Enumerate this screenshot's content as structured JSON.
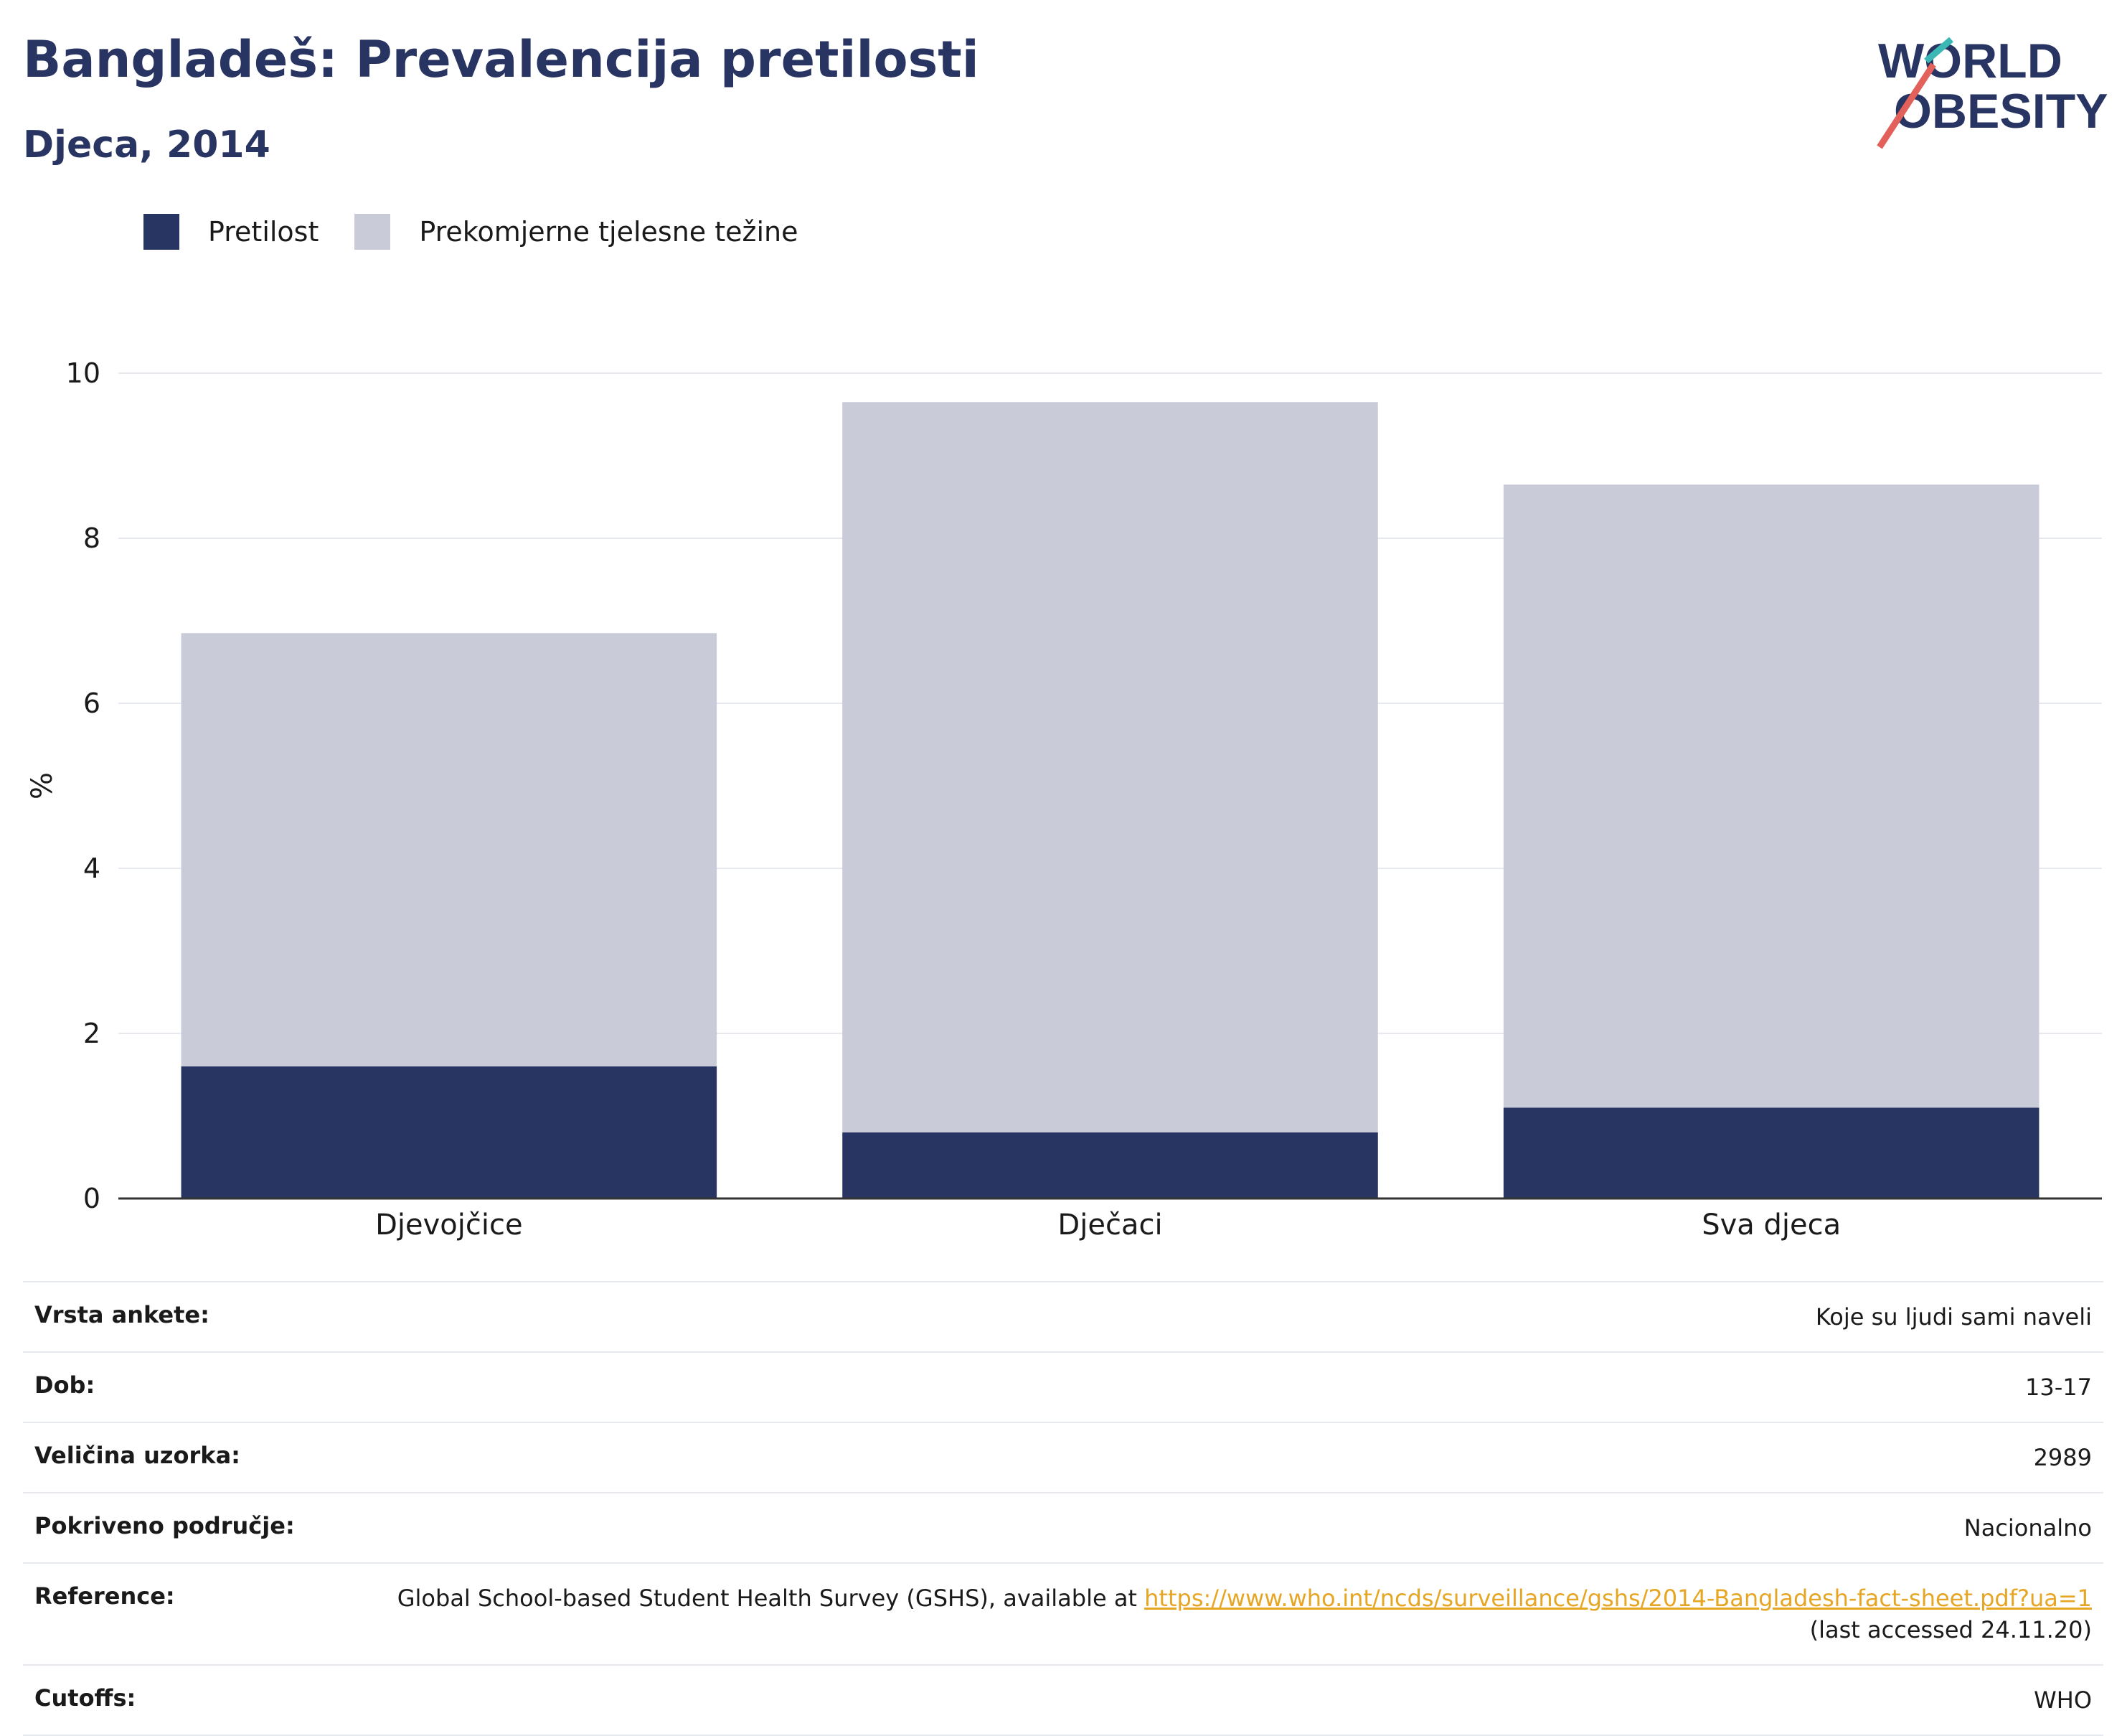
{
  "header": {
    "title": "Bangladeš: Prevalencija pretilosti",
    "subtitle": "Djeca, 2014"
  },
  "logo": {
    "line1": "WORLD",
    "line2": "OBESITY"
  },
  "colors": {
    "obesity": "#283462",
    "overweight": "#c9ccd8",
    "accent_teal": "#3bb8b5",
    "accent_red": "#e2615a",
    "link": "#e6a623"
  },
  "chart_data": {
    "type": "bar",
    "stacked": true,
    "categories": [
      "Djevojčice",
      "Dječaci",
      "Sva djeca"
    ],
    "series": [
      {
        "name": "Pretilost",
        "values": [
          1.6,
          0.8,
          1.1
        ],
        "color": "#283462"
      },
      {
        "name": "Prekomjerne tjelesne težine",
        "values": [
          5.25,
          8.85,
          7.55
        ],
        "color": "#c9ccd8"
      }
    ],
    "ylabel": "%",
    "ylim": [
      0,
      10
    ],
    "yticks": [
      0,
      2,
      4,
      6,
      8,
      10
    ],
    "grid": true,
    "legend": "top-left"
  },
  "meta": [
    {
      "key": "Vrsta ankete:",
      "value": "Koje su ljudi sami naveli"
    },
    {
      "key": "Dob:",
      "value": "13-17"
    },
    {
      "key": "Veličina uzorka:",
      "value": "2989"
    },
    {
      "key": "Pokriveno područje:",
      "value": "Nacionalno"
    },
    {
      "key": "Reference:",
      "value_prefix": "Global School-based Student Health Survey (GSHS), available at ",
      "link": "https://www.who.int/ncds/surveillance/gshs/2014-Bangladesh-fact-sheet.pdf?ua=1",
      "value_suffix": " (last accessed 24.11.20)"
    },
    {
      "key": "Cutoffs:",
      "value": "WHO"
    }
  ]
}
